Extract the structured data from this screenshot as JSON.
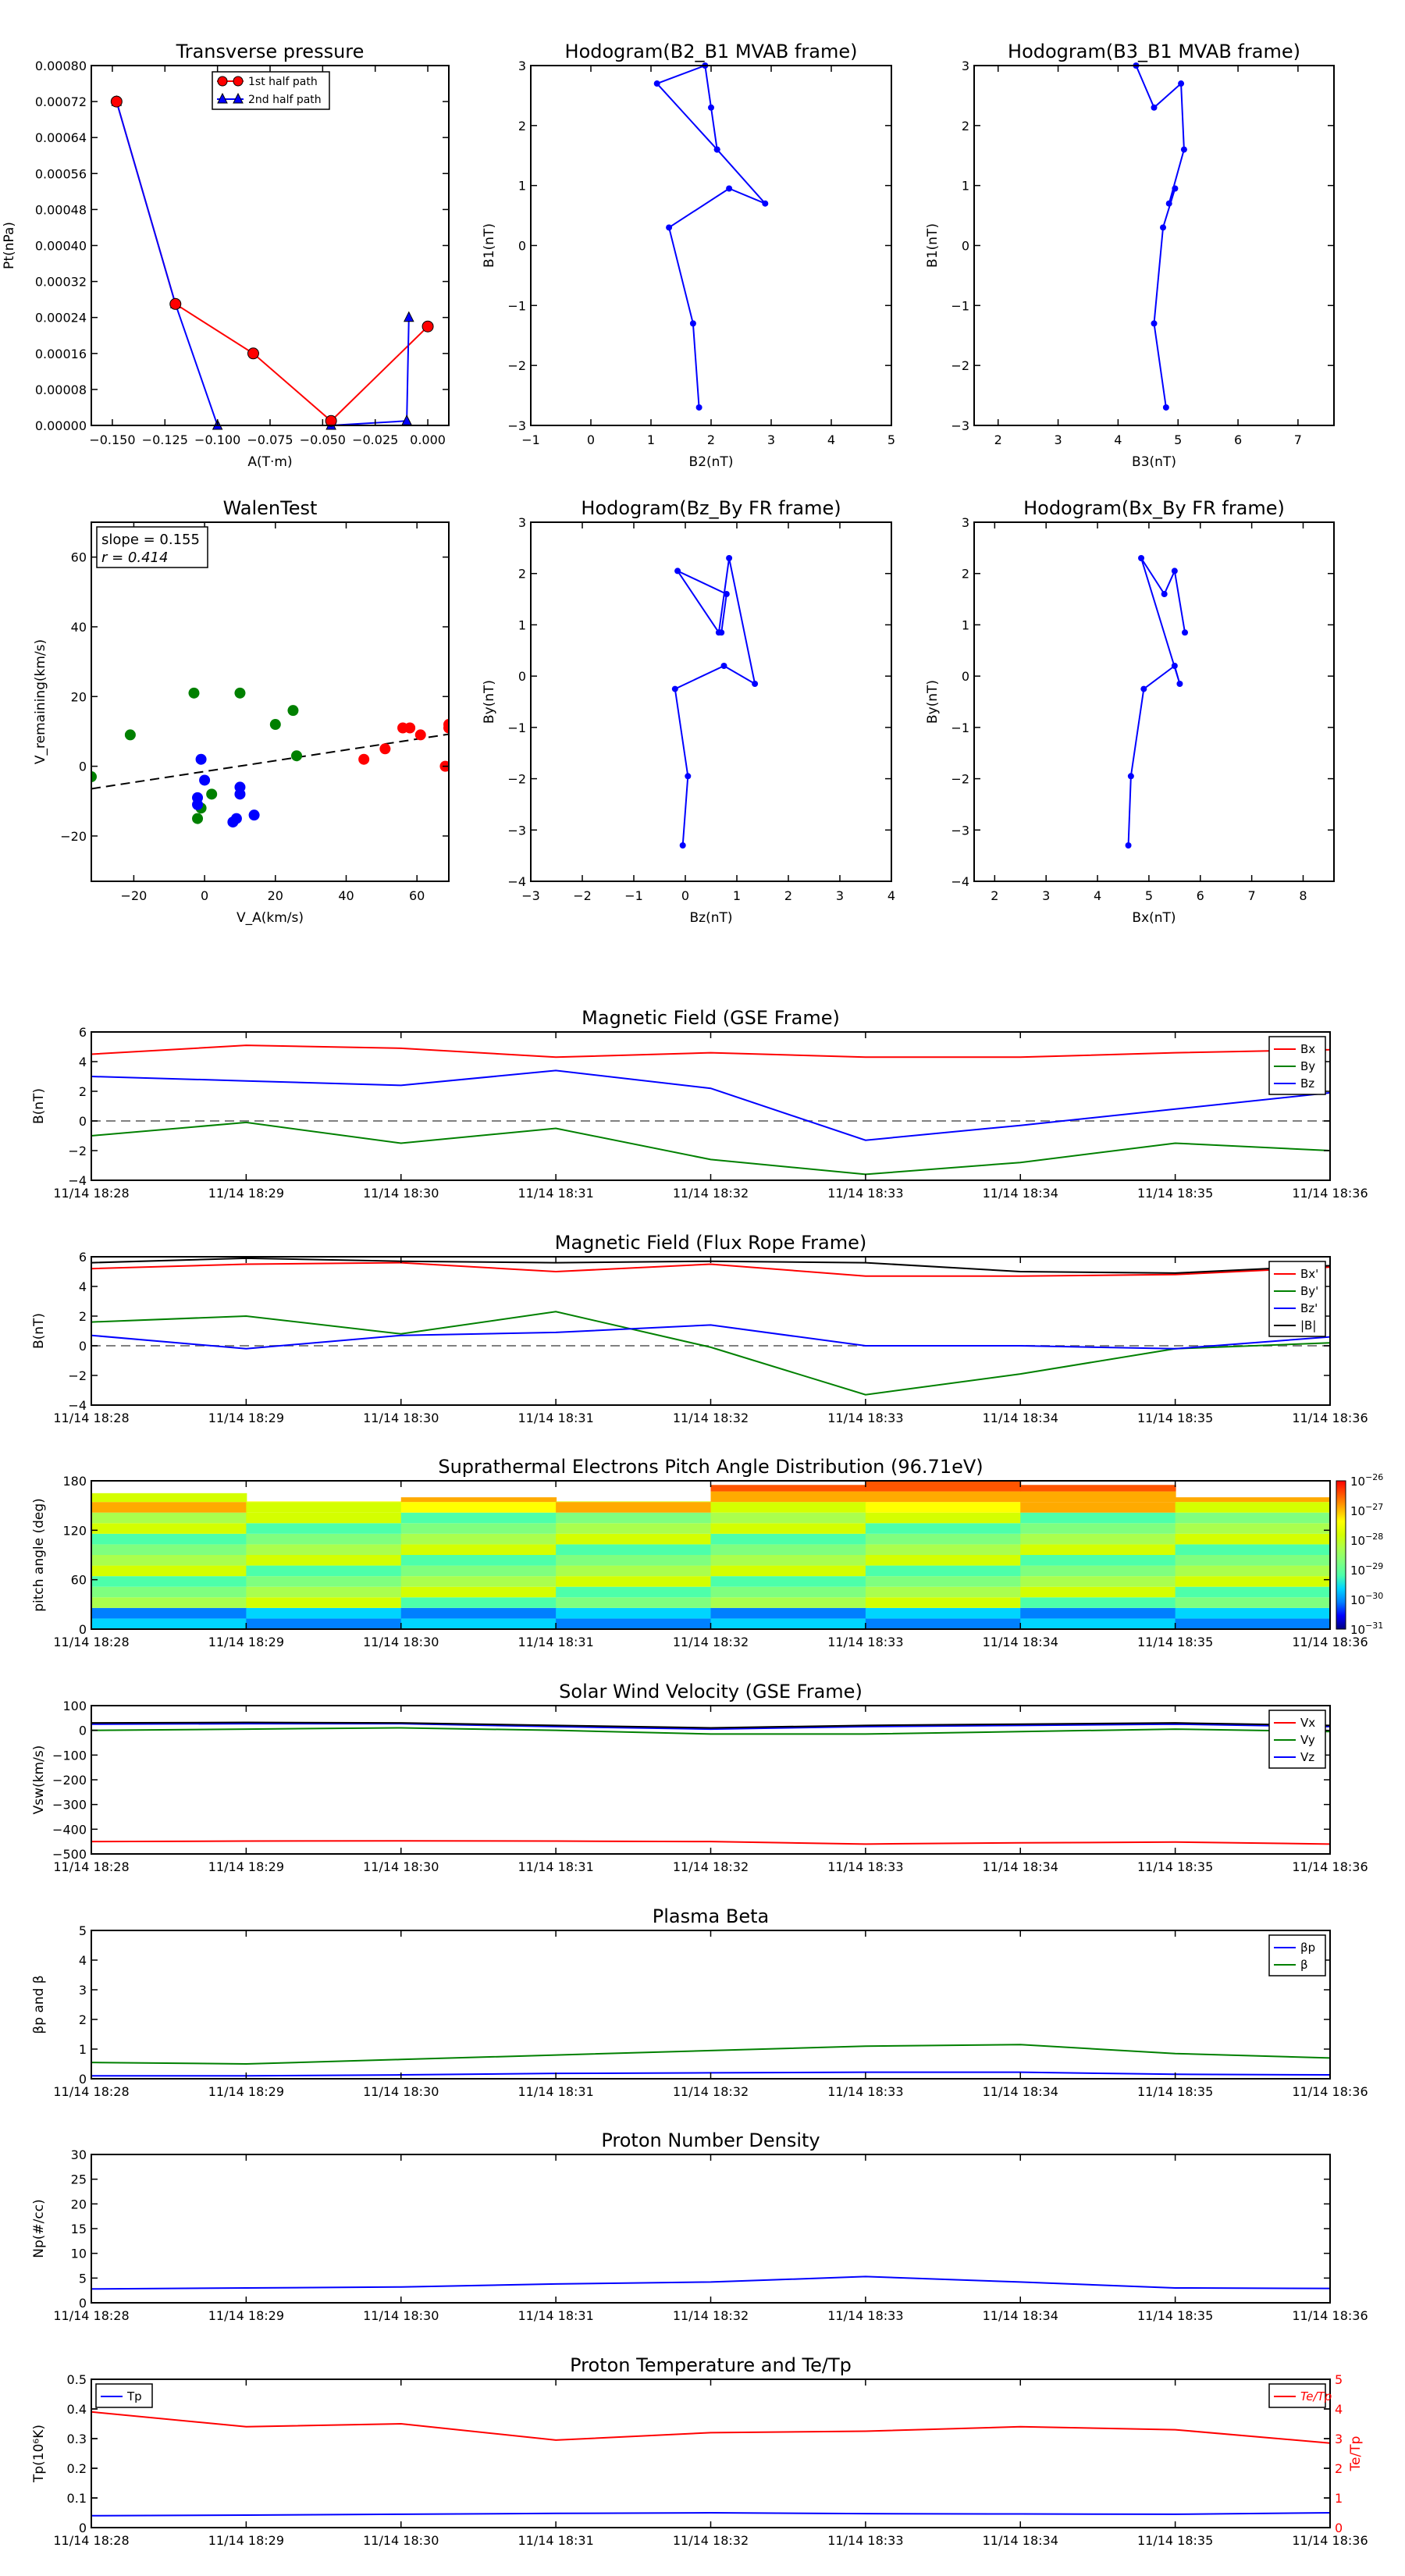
{
  "colors": {
    "red": "#ff0000",
    "green": "#008000",
    "blue": "#0000ff",
    "black": "#000000",
    "grey": "#808080",
    "marker_red": "#ff0000",
    "marker_blue": "#0000ff"
  },
  "time_ticks": [
    "11/14 18:28",
    "11/14 18:29",
    "11/14 18:30",
    "11/14 18:31",
    "11/14 18:32",
    "11/14 18:33",
    "11/14 18:34",
    "11/14 18:35",
    "11/14 18:36"
  ],
  "chart_data": [
    {
      "id": "tp",
      "type": "scatter",
      "title": "Transverse pressure",
      "xlabel": "A(T·m)",
      "ylabel": "Pt(nPa)",
      "xlim": [
        -0.16,
        0.01
      ],
      "ylim": [
        0,
        0.0008
      ],
      "xticks": [
        -0.15,
        -0.125,
        -0.1,
        -0.075,
        -0.05,
        -0.025,
        0.0
      ],
      "xtick_labels": [
        "−0.150",
        "−0.125",
        "−0.100",
        "−0.075",
        "−0.050",
        "−0.025",
        "0.000"
      ],
      "yticks": [
        0,
        8e-05,
        0.00016,
        0.00024,
        0.00032,
        0.0004,
        0.00048,
        0.00056,
        0.00064,
        0.00072,
        0.0008
      ],
      "ytick_labels": [
        "0.00000",
        "0.00008",
        "0.00016",
        "0.00024",
        "0.00032",
        "0.00040",
        "0.00048",
        "0.00056",
        "0.00064",
        "0.00072",
        "0.00080"
      ],
      "legend": [
        "1st half path",
        "2nd half path"
      ],
      "series": [
        {
          "name": "1st half path",
          "color": "red",
          "marker": "circle",
          "x": [
            -0.148,
            -0.12,
            -0.083,
            -0.046,
            0.0
          ],
          "y": [
            0.00072,
            0.00027,
            0.00016,
            1e-05,
            0.00022
          ]
        },
        {
          "name": "2nd half path",
          "color": "blue",
          "marker": "triangle",
          "x": [
            -0.148,
            -0.12,
            -0.1,
            -0.046,
            -0.01,
            -0.009
          ],
          "y": [
            0.00072,
            0.00027,
            0.0,
            0.0,
            1e-05,
            0.00024
          ]
        }
      ],
      "connect": [
        [
          -0.148,
          0.00072
        ],
        [
          -0.12,
          0.00027
        ],
        [
          -0.1,
          0.0
        ],
        [
          -0.046,
          0.0
        ],
        [
          -0.01,
          1e-05
        ],
        [
          -0.009,
          0.00024
        ]
      ]
    },
    {
      "id": "h1",
      "type": "line",
      "title": "Hodogram(B2_B1 MVAB frame)",
      "xlabel": "B2(nT)",
      "ylabel": "B1(nT)",
      "xlim": [
        -1,
        5
      ],
      "ylim": [
        -3,
        3
      ],
      "xticks": [
        -1,
        0,
        1,
        2,
        3,
        4,
        5
      ],
      "yticks": [
        -3,
        -2,
        -1,
        0,
        1,
        2,
        3
      ],
      "series": [
        {
          "color": "blue",
          "x": [
            1.8,
            1.7,
            1.3,
            2.3,
            2.9,
            2.1,
            1.1,
            1.9,
            2.0,
            2.1
          ],
          "y": [
            -2.7,
            -1.3,
            0.3,
            0.95,
            0.7,
            1.6,
            2.7,
            3.0,
            2.3,
            1.6
          ]
        }
      ]
    },
    {
      "id": "h2",
      "type": "line",
      "title": "Hodogram(B3_B1 MVAB frame)",
      "xlabel": "B3(nT)",
      "ylabel": "B1(nT)",
      "xlim": [
        1.6,
        7.6
      ],
      "ylim": [
        -3,
        3
      ],
      "xticks": [
        2,
        3,
        4,
        5,
        6,
        7
      ],
      "yticks": [
        -3,
        -2,
        -1,
        0,
        1,
        2,
        3
      ],
      "series": [
        {
          "color": "blue",
          "x": [
            4.8,
            4.6,
            4.75,
            4.95,
            4.85,
            5.1,
            5.05,
            4.6,
            4.3
          ],
          "y": [
            -2.7,
            -1.3,
            0.3,
            0.95,
            0.7,
            1.6,
            2.7,
            2.3,
            3.0
          ]
        }
      ]
    },
    {
      "id": "walen",
      "type": "scatter",
      "title": "WalenTest",
      "xlabel": "V_A(km/s)",
      "ylabel": "V_remaining(km/s)",
      "xlim": [
        -32,
        69
      ],
      "ylim": [
        -33,
        70
      ],
      "xticks": [
        -20,
        0,
        20,
        40,
        60
      ],
      "yticks": [
        -20,
        0,
        20,
        40,
        60
      ],
      "annotation": [
        "slope = 0.155",
        "r = 0.414"
      ],
      "fit": {
        "slope": 0.155,
        "intercept": -1.5
      },
      "series": [
        {
          "color": "green",
          "x": [
            -32,
            -21,
            -3,
            -2,
            -1,
            2,
            10,
            20,
            25,
            26
          ],
          "y": [
            -3,
            9,
            21,
            -15,
            -12,
            -8,
            21,
            12,
            16,
            3
          ]
        },
        {
          "color": "blue",
          "x": [
            -2,
            -2,
            -1,
            0,
            8,
            9,
            10,
            10,
            14
          ],
          "y": [
            -9,
            -11,
            2,
            -4,
            -16,
            -15,
            -6,
            -8,
            -14
          ]
        },
        {
          "color": "red",
          "x": [
            45,
            51,
            56,
            58,
            61,
            68,
            69,
            69
          ],
          "y": [
            2,
            5,
            11,
            11,
            9,
            0,
            12,
            11
          ]
        }
      ]
    },
    {
      "id": "h3",
      "type": "line",
      "title": "Hodogram(Bz_By FR frame)",
      "xlabel": "Bz(nT)",
      "ylabel": "By(nT)",
      "xlim": [
        -3,
        4
      ],
      "ylim": [
        -4,
        3
      ],
      "xticks": [
        -3,
        -2,
        -1,
        0,
        1,
        2,
        3,
        4
      ],
      "yticks": [
        -4,
        -3,
        -2,
        -1,
        0,
        1,
        2,
        3
      ],
      "series": [
        {
          "color": "blue",
          "x": [
            -0.05,
            0.05,
            -0.2,
            0.75,
            1.35,
            0.85,
            0.65,
            -0.15,
            0.8,
            0.7
          ],
          "y": [
            -3.3,
            -1.95,
            -0.25,
            0.2,
            -0.15,
            2.3,
            0.85,
            2.05,
            1.6,
            0.85
          ]
        }
      ]
    },
    {
      "id": "h4",
      "type": "line",
      "title": "Hodogram(Bx_By FR frame)",
      "xlabel": "Bx(nT)",
      "ylabel": "By(nT)",
      "xlim": [
        1.6,
        8.6
      ],
      "ylim": [
        -4,
        3
      ],
      "xticks": [
        2,
        3,
        4,
        5,
        6,
        7,
        8
      ],
      "yticks": [
        -4,
        -3,
        -2,
        -1,
        0,
        1,
        2,
        3
      ],
      "series": [
        {
          "color": "blue",
          "x": [
            4.6,
            4.65,
            4.9,
            5.5,
            5.6,
            4.85,
            5.3,
            5.5,
            5.7
          ],
          "y": [
            -3.3,
            -1.95,
            -0.25,
            0.2,
            -0.15,
            2.3,
            1.6,
            2.05,
            0.85
          ]
        }
      ]
    },
    {
      "id": "bgse",
      "type": "line",
      "title": "Magnetic Field (GSE Frame)",
      "ylabel": "B(nT)",
      "ylim": [
        -4,
        6
      ],
      "yticks": [
        -4,
        -2,
        0,
        2,
        4,
        6
      ],
      "zero_line": true,
      "series": [
        {
          "name": "Bx",
          "color": "red",
          "values": [
            4.5,
            5.1,
            4.9,
            4.3,
            4.6,
            4.3,
            4.3,
            4.6,
            4.8
          ]
        },
        {
          "name": "By",
          "color": "green",
          "values": [
            -1.0,
            -0.1,
            -1.5,
            -0.5,
            -2.6,
            -3.6,
            -2.8,
            -1.5,
            -2.0
          ]
        },
        {
          "name": "Bz",
          "color": "blue",
          "values": [
            3.0,
            2.7,
            2.4,
            3.4,
            2.2,
            -1.3,
            -0.3,
            0.8,
            1.9
          ]
        }
      ]
    },
    {
      "id": "bfr",
      "type": "line",
      "title": "Magnetic Field (Flux Rope Frame)",
      "ylabel": "B(nT)",
      "ylim": [
        -4,
        6
      ],
      "yticks": [
        -4,
        -2,
        0,
        2,
        4,
        6
      ],
      "zero_line": true,
      "series": [
        {
          "name": "Bx'",
          "color": "red",
          "values": [
            5.2,
            5.5,
            5.6,
            5.0,
            5.5,
            4.7,
            4.7,
            4.8,
            5.3
          ]
        },
        {
          "name": "By'",
          "color": "green",
          "values": [
            1.6,
            2.0,
            0.8,
            2.3,
            -0.1,
            -3.3,
            -1.9,
            -0.2,
            0.2
          ]
        },
        {
          "name": "Bz'",
          "color": "blue",
          "values": [
            0.7,
            -0.2,
            0.7,
            0.9,
            1.4,
            0.0,
            0.0,
            -0.2,
            0.6
          ]
        },
        {
          "name": "|B|",
          "color": "black",
          "values": [
            5.6,
            5.9,
            5.7,
            5.6,
            5.7,
            5.6,
            5.0,
            4.9,
            5.4
          ]
        }
      ]
    },
    {
      "id": "pad",
      "type": "heatmap",
      "title": "Suprathermal Electrons Pitch Angle Distribution (96.71eV)",
      "ylabel": "pitch angle (deg)",
      "ylim": [
        0,
        180
      ],
      "yticks": [
        0,
        60,
        120,
        180
      ],
      "colorbar_exponents": [
        "-26",
        "-27",
        "-28",
        "-29",
        "-30",
        "-31"
      ]
    },
    {
      "id": "vsw",
      "type": "line",
      "title": "Solar Wind Velocity (GSE Frame)",
      "ylabel": "Vsw(km/s)",
      "ylim": [
        -500,
        100
      ],
      "yticks": [
        -500,
        -400,
        -300,
        -200,
        -100,
        0,
        100
      ],
      "ytick_labels": [
        "−500",
        "−400",
        "−300",
        "−200",
        "−100",
        "0",
        "100"
      ],
      "series": [
        {
          "name": "Vx",
          "color": "red",
          "values": [
            -450,
            -448,
            -447,
            -448,
            -450,
            -460,
            -455,
            -452,
            -460
          ]
        },
        {
          "name": "Vy",
          "color": "green",
          "values": [
            0,
            5,
            10,
            0,
            -15,
            -15,
            -5,
            5,
            -5
          ]
        },
        {
          "name": "Vz",
          "color": "blue",
          "values": [
            25,
            27,
            27,
            15,
            5,
            15,
            20,
            25,
            15
          ]
        },
        {
          "name": "black",
          "color": "black",
          "values": [
            30,
            32,
            30,
            20,
            10,
            20,
            25,
            30,
            20
          ],
          "nolegend": true
        }
      ]
    },
    {
      "id": "beta",
      "type": "line",
      "title": "Plasma Beta",
      "ylabel": "βp and β",
      "ylim": [
        0,
        5
      ],
      "yticks": [
        0,
        1,
        2,
        3,
        4,
        5
      ],
      "series": [
        {
          "name": "βp",
          "color": "blue",
          "values": [
            0.1,
            0.1,
            0.13,
            0.18,
            0.2,
            0.22,
            0.22,
            0.15,
            0.13
          ]
        },
        {
          "name": "β",
          "color": "green",
          "values": [
            0.55,
            0.5,
            0.65,
            0.8,
            0.95,
            1.1,
            1.15,
            0.85,
            0.7
          ]
        }
      ]
    },
    {
      "id": "np",
      "type": "line",
      "title": "Proton Number Density",
      "ylabel": "Np(#/cc)",
      "ylim": [
        0,
        30
      ],
      "yticks": [
        0,
        5,
        10,
        15,
        20,
        25,
        30
      ],
      "series": [
        {
          "name": "Np",
          "color": "blue",
          "values": [
            2.8,
            3.0,
            3.2,
            3.8,
            4.2,
            5.3,
            4.2,
            3.0,
            2.9
          ]
        }
      ]
    },
    {
      "id": "temp",
      "type": "line",
      "title": "Proton Temperature and Te/Tp",
      "ylabel": "Tp(10⁶K)",
      "ylabel_right": "Te/Tp",
      "ylim": [
        0,
        0.5
      ],
      "yticks": [
        0,
        0.1,
        0.2,
        0.3,
        0.4,
        0.5
      ],
      "ylim_right": [
        0,
        5
      ],
      "yticks_right": [
        0,
        1,
        2,
        3,
        4,
        5
      ],
      "series": [
        {
          "name": "Tp",
          "color": "blue",
          "values": [
            0.04,
            0.042,
            0.045,
            0.048,
            0.05,
            0.047,
            0.046,
            0.045,
            0.05
          ]
        },
        {
          "name": "Te/Tp",
          "color": "red",
          "axis": "right",
          "values": [
            3.9,
            3.4,
            3.5,
            2.95,
            3.2,
            3.25,
            3.4,
            3.3,
            2.85
          ]
        }
      ]
    }
  ]
}
